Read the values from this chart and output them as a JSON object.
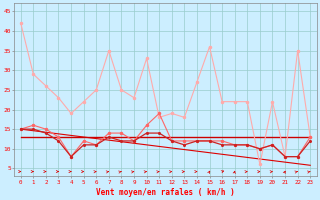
{
  "x": [
    0,
    1,
    2,
    3,
    4,
    5,
    6,
    7,
    8,
    9,
    10,
    11,
    12,
    13,
    14,
    15,
    16,
    17,
    18,
    19,
    20,
    21,
    22,
    23
  ],
  "line_rafales": [
    42,
    29,
    26,
    23,
    19,
    22,
    25,
    35,
    25,
    23,
    33,
    18,
    19,
    18,
    27,
    36,
    22,
    22,
    22,
    6,
    22,
    8,
    35,
    13
  ],
  "line_moyen": [
    15,
    16,
    15,
    13,
    8,
    12,
    11,
    14,
    14,
    12,
    16,
    19,
    12,
    12,
    12,
    12,
    12,
    11,
    11,
    10,
    11,
    8,
    8,
    13
  ],
  "line_mid2": [
    15,
    15,
    14,
    12,
    8,
    11,
    11,
    13,
    12,
    12,
    14,
    14,
    12,
    11,
    12,
    12,
    11,
    11,
    11,
    10,
    11,
    8,
    8,
    12
  ],
  "line_trend1": [
    15,
    14.6,
    14.2,
    13.8,
    13.4,
    13.0,
    12.6,
    12.2,
    11.8,
    11.4,
    11.0,
    10.6,
    10.2,
    9.8,
    9.4,
    9.0,
    8.6,
    8.2,
    7.8,
    7.4,
    7.0,
    6.6,
    6.2,
    5.8
  ],
  "line_flat": [
    13,
    13,
    13,
    13,
    13,
    13,
    13,
    13,
    13,
    13,
    13,
    13,
    13,
    13,
    13,
    13,
    13,
    13,
    13,
    13,
    13,
    13,
    13,
    13
  ],
  "arrow_angles": [
    0,
    0,
    0,
    0,
    0,
    5,
    15,
    25,
    30,
    25,
    20,
    20,
    15,
    10,
    5,
    80,
    50,
    85,
    15,
    10,
    15,
    80,
    30,
    30
  ],
  "bg_color": "#cceeff",
  "grid_color": "#99cccc",
  "line_rafales_color": "#ffaaaa",
  "line_moyen_color": "#ff6666",
  "line_mid2_color": "#cc2222",
  "line_trend1_color": "#dd0000",
  "line_flat_color": "#cc0000",
  "arrow_color": "#dd0000",
  "xlabel": "Vent moyen/en rafales ( km/h )",
  "ylim": [
    3,
    47
  ],
  "yticks": [
    5,
    10,
    15,
    20,
    25,
    30,
    35,
    40,
    45
  ],
  "xticks": [
    0,
    1,
    2,
    3,
    4,
    5,
    6,
    7,
    8,
    9,
    10,
    11,
    12,
    13,
    14,
    15,
    16,
    17,
    18,
    19,
    20,
    21,
    22,
    23
  ]
}
